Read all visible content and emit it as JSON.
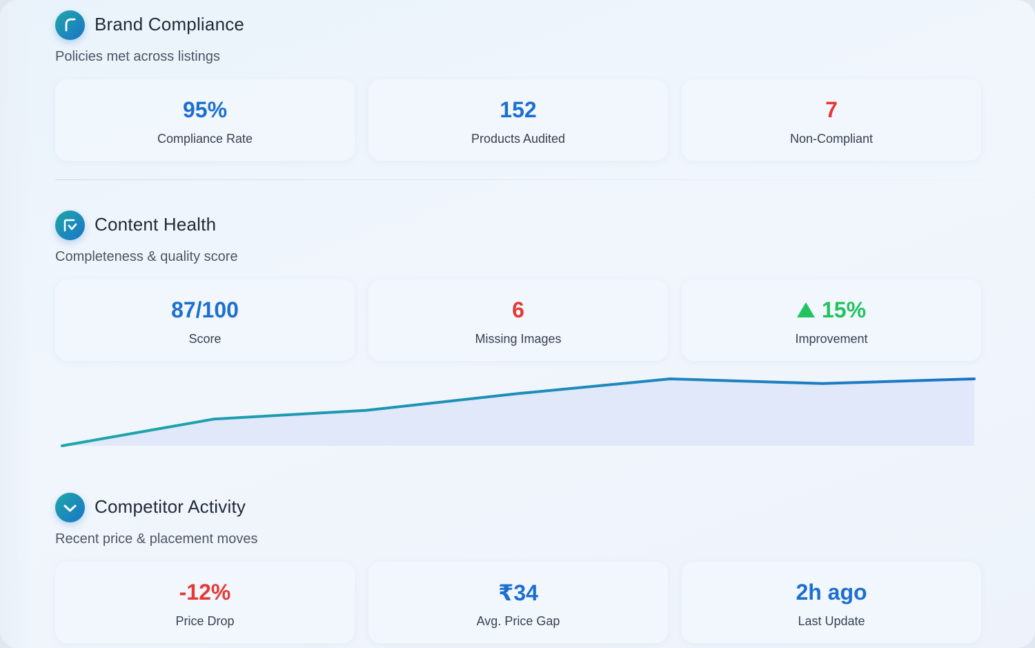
{
  "sections": [
    {
      "title": "Brand Compliance",
      "subtitle": "Policies met across listings",
      "icon": "refresh-arc-icon",
      "cards": [
        {
          "value": "95%",
          "label": "Compliance Rate",
          "tone": "blue"
        },
        {
          "value": "152",
          "label": "Products Audited",
          "tone": "blue"
        },
        {
          "value": "7",
          "label": "Non-Compliant",
          "tone": "red"
        }
      ]
    },
    {
      "title": "Content Health",
      "subtitle": "Completeness & quality score",
      "icon": "checklist-icon",
      "cards": [
        {
          "value": "87/100",
          "label": "Score",
          "tone": "blue"
        },
        {
          "value": "6",
          "label": "Missing Images",
          "tone": "red"
        },
        {
          "value": "15%",
          "label": "Improvement",
          "tone": "green",
          "icon": "triangle-up-icon"
        }
      ]
    },
    {
      "title": "Competitor Activity",
      "subtitle": "Recent price & placement moves",
      "icon": "chevron-down-icon",
      "cards": [
        {
          "value": "-12%",
          "label": "Price Drop",
          "tone": "red"
        },
        {
          "value": "₹34",
          "label": "Avg. Price Gap",
          "tone": "blue"
        },
        {
          "value": "2h ago",
          "label": "Last Update",
          "tone": "blue"
        }
      ]
    }
  ],
  "colors": {
    "blue": "#1d6fcf",
    "red": "#e53935",
    "green": "#22c35e",
    "line_start": "#1ea7a8",
    "line_end": "#1b74c8",
    "area_fill": "#dde5f8"
  },
  "chart_data": {
    "type": "area",
    "title": "",
    "xlabel": "",
    "ylabel": "",
    "x": [
      1,
      2,
      3,
      4,
      5,
      6,
      7
    ],
    "values": [
      0,
      40,
      53,
      78,
      100,
      93,
      100
    ],
    "ylim": [
      0,
      100
    ],
    "grid": false,
    "legend": "none"
  }
}
